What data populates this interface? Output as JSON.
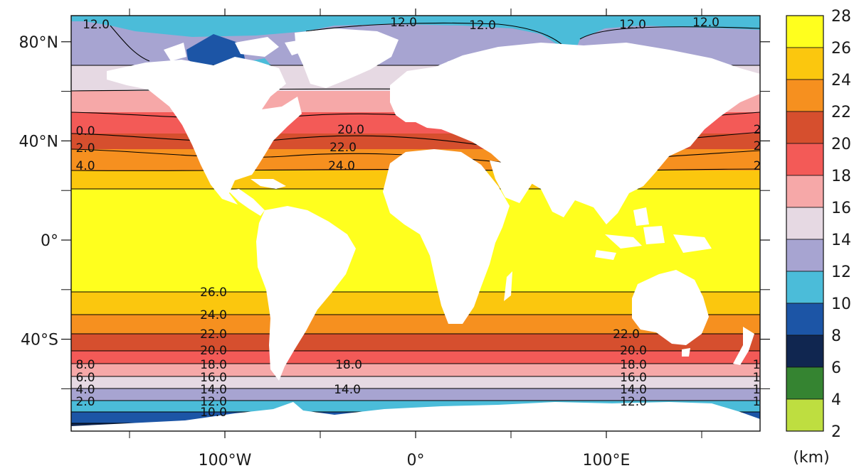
{
  "map": {
    "x_ticks": [
      {
        "lon": -100,
        "label": "100°W"
      },
      {
        "lon": 0,
        "label": "0°"
      },
      {
        "lon": 100,
        "label": "100°E"
      }
    ],
    "y_ticks": [
      {
        "lat": 80,
        "label": "80°N"
      },
      {
        "lat": 40,
        "label": "40°N"
      },
      {
        "lat": 0,
        "label": "0°"
      },
      {
        "lat": -40,
        "label": "40°S"
      }
    ],
    "colorbar": {
      "unit": "(km)",
      "labels": [
        "28",
        "26",
        "24",
        "22",
        "20",
        "18",
        "16",
        "14",
        "12",
        "10",
        "8",
        "6",
        "4",
        "2"
      ],
      "colors": [
        "#ffff1e",
        "#fbc70e",
        "#f6901f",
        "#d64f2e",
        "#f35a57",
        "#f6a8a8",
        "#e6d9e3",
        "#a7a4d1",
        "#4bbcd9",
        "#1c55a6",
        "#102650",
        "#358431",
        "#bede40"
      ]
    },
    "contour_labels": [
      {
        "text": "12.0",
        "pos": "north-left"
      },
      {
        "text": "12.0",
        "pos": "north-mid-1"
      },
      {
        "text": "12.0",
        "pos": "north-mid-2"
      },
      {
        "text": "12.0",
        "pos": "north-right-1"
      },
      {
        "text": "12.0",
        "pos": "north-right-2"
      },
      {
        "text": "0.0",
        "pos": "left-40n-1"
      },
      {
        "text": "2.0",
        "pos": "left-40n-2"
      },
      {
        "text": "4.0",
        "pos": "left-40n-3"
      },
      {
        "text": "20.0",
        "pos": "atl-1"
      },
      {
        "text": "22.0",
        "pos": "atl-2"
      },
      {
        "text": "24.0",
        "pos": "atl-3"
      },
      {
        "text": "2",
        "pos": "right-40n-1"
      },
      {
        "text": "2",
        "pos": "right-40n-2"
      },
      {
        "text": "2",
        "pos": "right-40n-3"
      },
      {
        "text": "26.0",
        "pos": "sp-26"
      },
      {
        "text": "24.0",
        "pos": "sp-24"
      },
      {
        "text": "22.0",
        "pos": "sp-22"
      },
      {
        "text": "20.0",
        "pos": "sp-20"
      },
      {
        "text": "18.0",
        "pos": "sp-18"
      },
      {
        "text": "16.0",
        "pos": "sp-16"
      },
      {
        "text": "14.0",
        "pos": "sp-14"
      },
      {
        "text": "12.0",
        "pos": "sp-12"
      },
      {
        "text": "10.0",
        "pos": "sp-10"
      },
      {
        "text": "8.0",
        "pos": "left-s-1"
      },
      {
        "text": "6.0",
        "pos": "left-s-2"
      },
      {
        "text": "4.0",
        "pos": "left-s-3"
      },
      {
        "text": "2.0",
        "pos": "left-s-4"
      },
      {
        "text": "18.0",
        "pos": "satl-18"
      },
      {
        "text": "14.0",
        "pos": "satl-14"
      },
      {
        "text": "22.0",
        "pos": "ind-22"
      },
      {
        "text": "20.0",
        "pos": "ind-20"
      },
      {
        "text": "18.0",
        "pos": "ind-18"
      },
      {
        "text": "16.0",
        "pos": "ind-16"
      },
      {
        "text": "14.0",
        "pos": "ind-14"
      },
      {
        "text": "12.0",
        "pos": "ind-12"
      },
      {
        "text": "1",
        "pos": "right-s-1"
      },
      {
        "text": "1",
        "pos": "right-s-2"
      },
      {
        "text": "1",
        "pos": "right-s-3"
      },
      {
        "text": "1",
        "pos": "right-s-4"
      }
    ]
  }
}
